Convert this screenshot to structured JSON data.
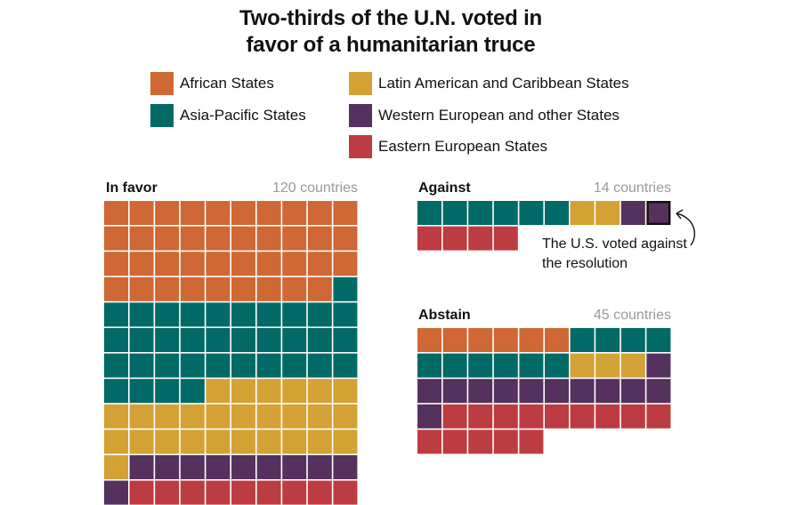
{
  "title": {
    "line1": "Two-thirds of the U.N. voted in",
    "line2": "favor of a humanitarian truce"
  },
  "legend": [
    {
      "label": "African States",
      "color": "#cf6834"
    },
    {
      "label": "Asia-Pacific States",
      "color": "#016a66"
    },
    {
      "label": "Latin American and Caribbean States",
      "color": "#d4a135"
    },
    {
      "label": "Western European and other States",
      "color": "#55315e"
    },
    {
      "label": "Eastern European States",
      "color": "#bd3c41"
    }
  ],
  "chart_data": [
    {
      "type": "waffle",
      "title": "In favor",
      "count_label": "120 countries",
      "columns": 10,
      "categories": [
        "African States",
        "Asia-Pacific States",
        "Latin American and Caribbean States",
        "Western European and other States",
        "Eastern European States"
      ],
      "values": [
        39,
        35,
        27,
        10,
        9
      ],
      "total": 120
    },
    {
      "type": "waffle",
      "title": "Against",
      "count_label": "14 countries",
      "columns": 10,
      "categories": [
        "Asia-Pacific States",
        "Latin American and Caribbean States",
        "Western European and other States",
        "Eastern European States"
      ],
      "values": [
        6,
        2,
        2,
        4
      ],
      "total": 14,
      "highlight_index": 9,
      "annotation": {
        "line1": "The U.S. voted against",
        "line2": "the resolution"
      }
    },
    {
      "type": "waffle",
      "title": "Abstain",
      "count_label": "45 countries",
      "columns": 10,
      "categories": [
        "African States",
        "Asia-Pacific States",
        "Latin American and Caribbean States",
        "Western European and other States",
        "Eastern European States"
      ],
      "values": [
        6,
        10,
        3,
        12,
        14
      ],
      "total": 45
    }
  ]
}
